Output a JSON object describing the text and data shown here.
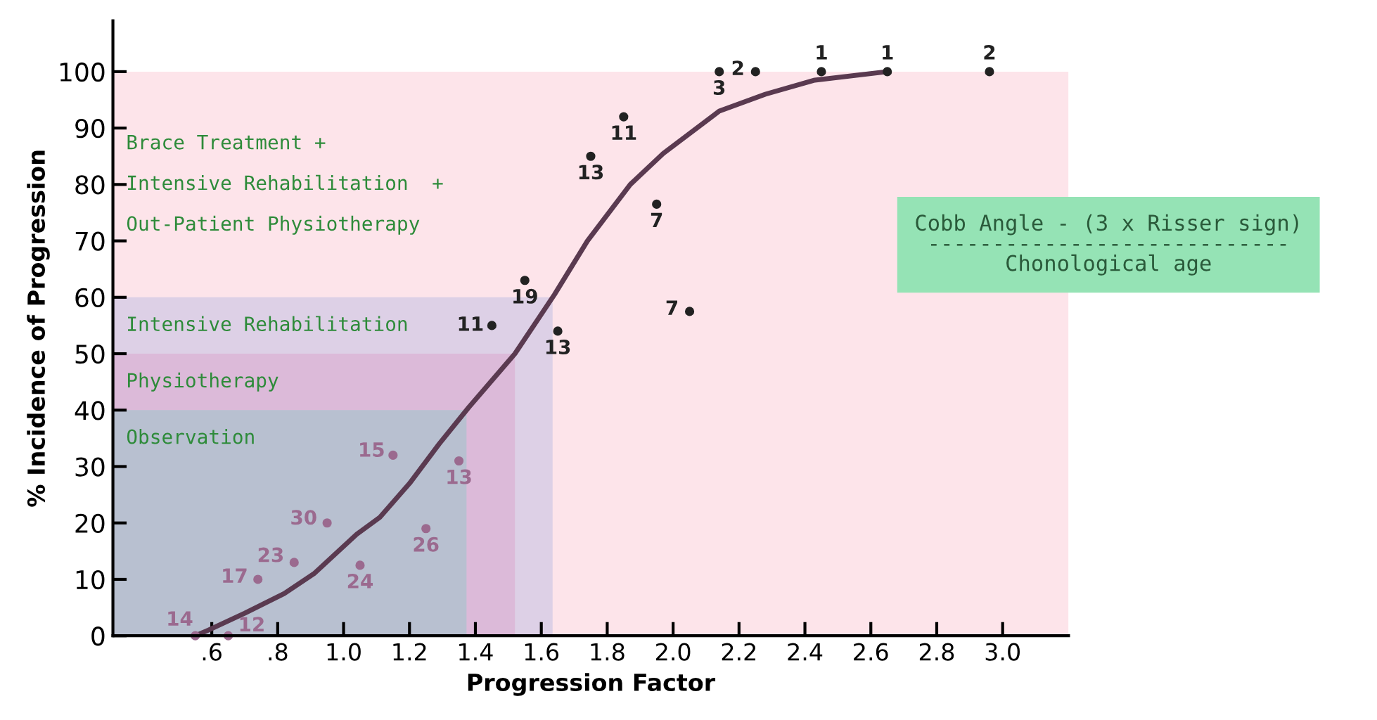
{
  "chart_data": {
    "type": "scatter",
    "xlabel": "Progression Factor",
    "ylabel": "% Incidence of Progression",
    "xlim": [
      0.3,
      3.2
    ],
    "ylim": [
      0,
      109
    ],
    "xticks": [
      {
        "value": 0.6,
        "label": ".6"
      },
      {
        "value": 0.8,
        "label": ".8"
      },
      {
        "value": 1.0,
        "label": "1.0"
      },
      {
        "value": 1.2,
        "label": "1.2"
      },
      {
        "value": 1.4,
        "label": "1.4"
      },
      {
        "value": 1.6,
        "label": "1.6"
      },
      {
        "value": 1.8,
        "label": "1.8"
      },
      {
        "value": 2.0,
        "label": "2.0"
      },
      {
        "value": 2.2,
        "label": "2.2"
      },
      {
        "value": 2.4,
        "label": "2.4"
      },
      {
        "value": 2.6,
        "label": "2.6"
      },
      {
        "value": 2.8,
        "label": "2.8"
      },
      {
        "value": 3.0,
        "label": "3.0"
      }
    ],
    "yticks": [
      0,
      10,
      20,
      30,
      40,
      50,
      60,
      70,
      80,
      90,
      100
    ],
    "grid": false,
    "legend": false,
    "series": [
      {
        "marker": "circle",
        "x": [
          0.55,
          0.65,
          0.74,
          0.85,
          0.95,
          1.05,
          1.15,
          1.25,
          1.35,
          1.45,
          1.55,
          1.65,
          1.75,
          1.85,
          1.95,
          2.05,
          2.14,
          2.25,
          2.45,
          2.65,
          2.96
        ],
        "values": [
          0,
          0,
          10,
          13,
          20,
          12.5,
          32,
          19,
          31,
          55,
          63,
          54,
          85,
          92,
          76.5,
          57.5,
          100,
          100,
          100,
          100,
          100
        ],
        "colors": [
          "#9b6a8f",
          "#9b6a8f",
          "#9b6a8f",
          "#9b6a8f",
          "#9b6a8f",
          "#9b6a8f",
          "#9b6a8f",
          "#9b6a8f",
          "#9b6a8f",
          "#222222",
          "#222222",
          "#222222",
          "#222222",
          "#222222",
          "#222222",
          "#222222",
          "#222222",
          "#222222",
          "#222222",
          "#222222",
          "#222222"
        ]
      },
      {
        "type": "line",
        "color": "#5a3a50",
        "x": [
          0.55,
          0.59,
          0.7,
          0.82,
          0.91,
          1.04,
          1.11,
          1.2,
          1.29,
          1.38,
          1.52,
          1.64,
          1.74,
          1.87,
          1.97,
          2.14,
          2.28,
          2.43,
          2.65
        ],
        "values": [
          0,
          1,
          4,
          7.5,
          11,
          18,
          21,
          27,
          34,
          40.5,
          50,
          60.5,
          70,
          80,
          85.5,
          93,
          96,
          98.5,
          100
        ]
      }
    ],
    "bands": [
      {
        "axis": "y",
        "from": 0,
        "to": 100,
        "color": "#fde4ea",
        "label": "Brace Treatment +\nIntensive Rehabilitation  +\nOut-Patient Physiotherapy"
      },
      {
        "axis": "y",
        "from": 0,
        "to": 60,
        "color": "#ddd0e6",
        "label": "Intensive Rehabilitation"
      },
      {
        "axis": "y",
        "from": 0,
        "to": 50,
        "color": "#dcbad9",
        "label": "Physiotherapy"
      },
      {
        "axis": "y",
        "from": 0,
        "to": 40,
        "color": "#b8c0d0",
        "label": "Observation"
      }
    ],
    "annotations": [
      {
        "text": "14",
        "x": 0.55,
        "y": 0
      },
      {
        "text": "12",
        "x": 0.65,
        "y": 0
      },
      {
        "text": "17",
        "x": 0.74,
        "y": 10
      },
      {
        "text": "23",
        "x": 0.85,
        "y": 13
      },
      {
        "text": "30",
        "x": 0.95,
        "y": 20
      },
      {
        "text": "24",
        "x": 1.05,
        "y": 12.5
      },
      {
        "text": "15",
        "x": 1.15,
        "y": 32
      },
      {
        "text": "26",
        "x": 1.25,
        "y": 19
      },
      {
        "text": "13",
        "x": 1.35,
        "y": 31
      },
      {
        "text": "11",
        "x": 1.45,
        "y": 55
      },
      {
        "text": "19",
        "x": 1.55,
        "y": 63
      },
      {
        "text": "13",
        "x": 1.65,
        "y": 54
      },
      {
        "text": "13",
        "x": 1.75,
        "y": 85
      },
      {
        "text": "11",
        "x": 1.85,
        "y": 92
      },
      {
        "text": "7",
        "x": 1.95,
        "y": 76.5
      },
      {
        "text": "7",
        "x": 2.05,
        "y": 57.5
      },
      {
        "text": "3",
        "x": 2.14,
        "y": 100
      },
      {
        "text": "2",
        "x": 2.25,
        "y": 100
      },
      {
        "text": "1",
        "x": 2.45,
        "y": 100
      },
      {
        "text": "1",
        "x": 2.65,
        "y": 100
      },
      {
        "text": "2",
        "x": 2.96,
        "y": 100
      },
      "Cobb Angle - (3 x Risser sign)\n----------------------------\nChonological age"
    ]
  }
}
